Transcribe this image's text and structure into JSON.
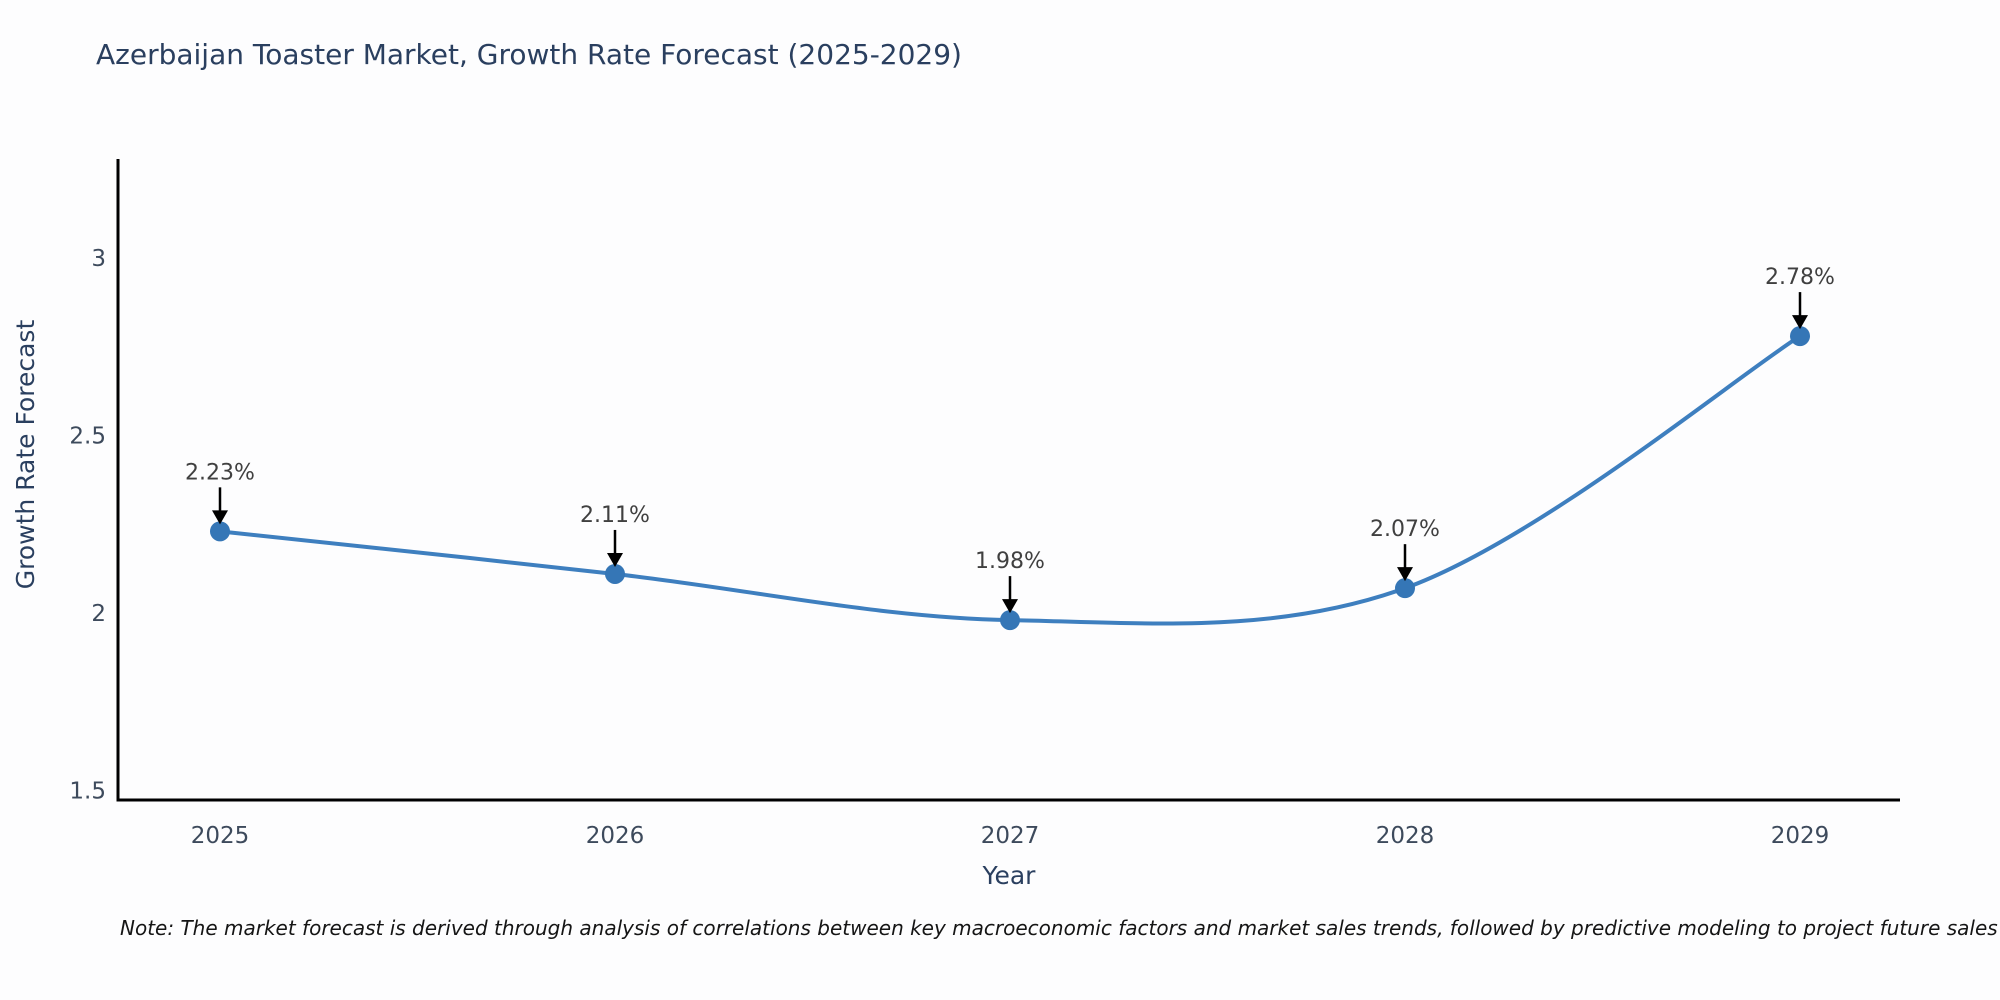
{
  "page": {
    "background": "#fdfdfe"
  },
  "title": {
    "text": "Azerbaijan Toaster Market, Growth Rate Forecast (2025-2029)",
    "color": "#2a3f5f"
  },
  "note": {
    "text": "Note: The market forecast is derived through analysis of correlations between key macroeconomic factors and market sales trends, followed by predictive modeling to project future sales"
  },
  "chart_data": {
    "type": "line",
    "title": "Azerbaijan Toaster Market, Growth Rate Forecast (2025-2029)",
    "xlabel": "Year",
    "ylabel": "Growth Rate Forecast",
    "categories": [
      "2025",
      "2026",
      "2027",
      "2028",
      "2029"
    ],
    "x": [
      2025,
      2026,
      2027,
      2028,
      2029
    ],
    "series": [
      {
        "name": "Growth Rate Forecast",
        "values": [
          2.23,
          2.11,
          1.98,
          2.07,
          2.78
        ]
      }
    ],
    "point_labels": [
      "2.23%",
      "2.11%",
      "1.98%",
      "2.07%",
      "2.78%"
    ],
    "ytick_labels": [
      "1.5",
      "2",
      "2.5",
      "3"
    ],
    "ytick_values": [
      1.5,
      2,
      2.5,
      3
    ],
    "ylim": [
      1.47,
      3.3
    ],
    "grid": false,
    "legend": "none",
    "line_shape": "spline",
    "annotation_style": "black-down-arrows",
    "colors": {
      "line": "#3e7fbf",
      "marker": "#3576b6",
      "arrow": "#000000",
      "axis_line": "#000000",
      "title": "#2a3f5f",
      "axis_title": "#2a3f5f",
      "tick_label": "#3d4a5c",
      "point_label": "#404040"
    }
  }
}
